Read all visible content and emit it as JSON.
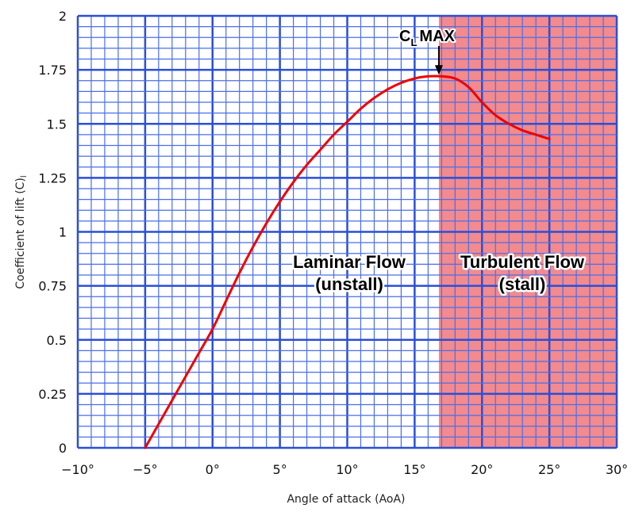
{
  "chart_data": {
    "type": "line",
    "xlabel": "Angle of attack (AoA)",
    "ylabel": "Coefficient of lift (C)",
    "ylabel_subscript": "l",
    "xlim": [
      -10,
      30
    ],
    "ylim": [
      0,
      2
    ],
    "x_ticks": [
      "−10°",
      "−5°",
      "0°",
      "5°",
      "10°",
      "15°",
      "20°",
      "25°",
      "30°"
    ],
    "y_ticks": [
      "0",
      "0.25",
      "0.5",
      "0.75",
      "1",
      "1.25",
      "1.5",
      "1.75",
      "2"
    ],
    "grid": true,
    "colors": {
      "grid_minor": "#4a6ee8",
      "grid_major": "#2a4fd6",
      "curve": "#ee0000",
      "stall_region": "#f28a8e"
    },
    "series": [
      {
        "x": [
          -5,
          -4,
          -3,
          -2,
          -1,
          0,
          1,
          2,
          3,
          4,
          5,
          6,
          7,
          8,
          9,
          10,
          11,
          12,
          13,
          14,
          15,
          16,
          17,
          18,
          19,
          20,
          21,
          22,
          23,
          24,
          25
        ],
        "y": [
          0.0,
          0.11,
          0.22,
          0.33,
          0.44,
          0.55,
          0.68,
          0.81,
          0.93,
          1.04,
          1.14,
          1.23,
          1.31,
          1.38,
          1.45,
          1.51,
          1.57,
          1.62,
          1.66,
          1.69,
          1.71,
          1.72,
          1.72,
          1.71,
          1.67,
          1.6,
          1.54,
          1.5,
          1.47,
          1.45,
          1.43
        ]
      }
    ],
    "stall_region": {
      "x_start": 16.8,
      "x_end": 30
    },
    "annotations": {
      "peak": {
        "main": "C",
        "sub": "L",
        "rest": "MAX",
        "x": 16.8,
        "y": 1.72
      },
      "laminar": {
        "line1": "Laminar Flow",
        "line2": "(unstall)"
      },
      "turbulent": {
        "line1": "Turbulent Flow",
        "line2": "(stall)"
      }
    }
  }
}
